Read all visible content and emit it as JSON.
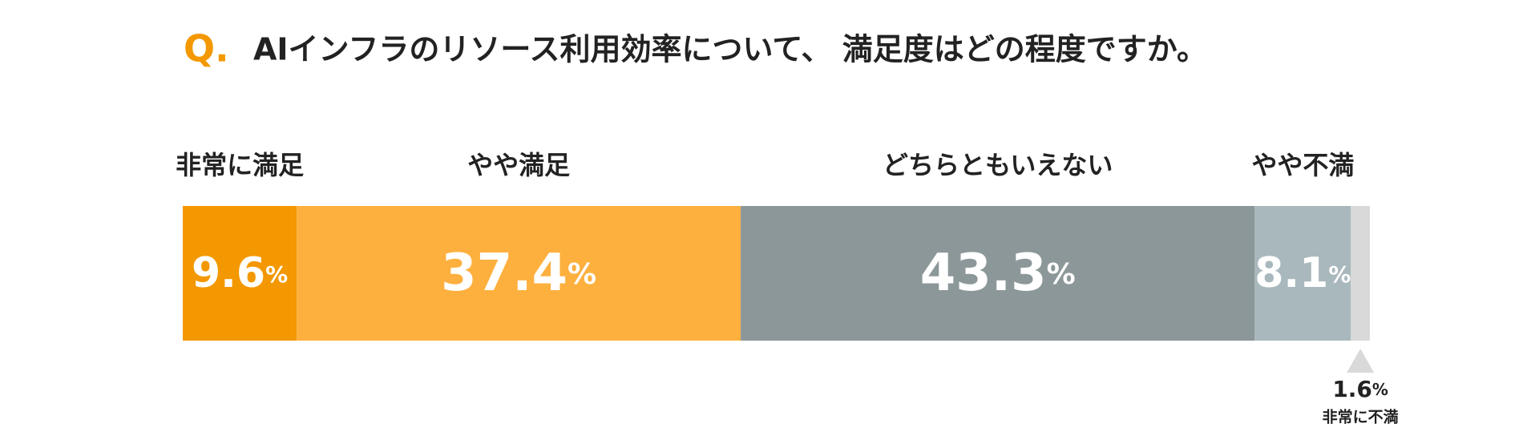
{
  "chart_data": {
    "type": "stacked-bar-100",
    "question_prefix": "Q.",
    "title": "AIインフラのリソース利用効率について、 満足度はどの程度ですか。",
    "categories": [
      "非常に満足",
      "やや満足",
      "どちらともいえない",
      "やや不満",
      "非常に不満"
    ],
    "values": [
      9.6,
      37.4,
      43.3,
      8.1,
      1.6
    ],
    "unit": "%",
    "colors": [
      "#f39800",
      "#fdb03e",
      "#8c9799",
      "#a9b8bd",
      "#d9d9d9"
    ],
    "xlim": [
      0,
      100
    ]
  }
}
